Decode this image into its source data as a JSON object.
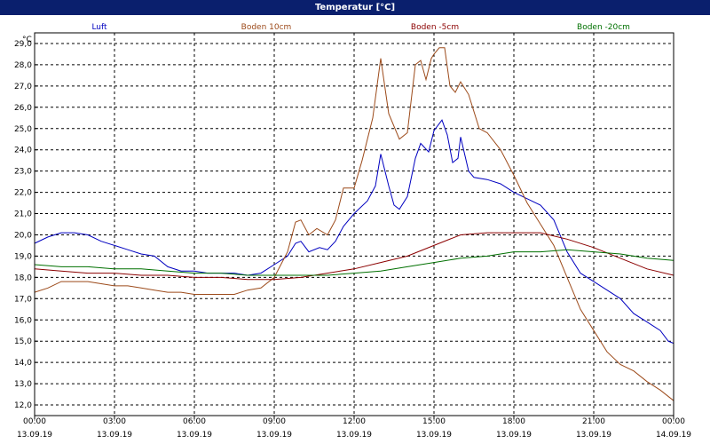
{
  "window": {
    "title": "Temperatur [°C]"
  },
  "chart_data": {
    "type": "line",
    "title": "Temperatur [°C]",
    "ylabel": "°C",
    "ylim": [
      11.5,
      29.5
    ],
    "yticks": [
      12.0,
      13.0,
      14.0,
      15.0,
      16.0,
      17.0,
      18.0,
      19.0,
      20.0,
      21.0,
      22.0,
      23.0,
      24.0,
      25.0,
      26.0,
      27.0,
      28.0,
      29.0
    ],
    "ytick_labels": [
      "12,0",
      "13,0",
      "14,0",
      "15,0",
      "16,0",
      "17,0",
      "18,0",
      "19,0",
      "20,0",
      "21,0",
      "22,0",
      "23,0",
      "24,0",
      "25,0",
      "26,0",
      "27,0",
      "28,0",
      "29,0"
    ],
    "xlim": [
      0,
      24
    ],
    "xticks": [
      {
        "h": 0,
        "time": "00:00",
        "date": "13.09.19"
      },
      {
        "h": 3,
        "time": "03:00",
        "date": "13.09.19"
      },
      {
        "h": 6,
        "time": "06:00",
        "date": "13.09.19"
      },
      {
        "h": 9,
        "time": "09:00",
        "date": "13.09.19"
      },
      {
        "h": 12,
        "time": "12:00",
        "date": "13.09.19"
      },
      {
        "h": 15,
        "time": "15:00",
        "date": "13.09.19"
      },
      {
        "h": 18,
        "time": "18:00",
        "date": "13.09.19"
      },
      {
        "h": 21,
        "time": "21:00",
        "date": "13.09.19"
      },
      {
        "h": 24,
        "time": "00:00",
        "date": "14.09.19"
      }
    ],
    "grid": true,
    "legend_position": "top",
    "series": [
      {
        "name": "Luft",
        "color": "#0000c0",
        "points": [
          [
            0,
            19.6
          ],
          [
            0.5,
            19.9
          ],
          [
            1,
            20.1
          ],
          [
            1.5,
            20.1
          ],
          [
            2,
            20.0
          ],
          [
            2.5,
            19.7
          ],
          [
            3,
            19.5
          ],
          [
            3.5,
            19.3
          ],
          [
            4,
            19.1
          ],
          [
            4.5,
            19.0
          ],
          [
            5,
            18.5
          ],
          [
            5.5,
            18.3
          ],
          [
            6,
            18.3
          ],
          [
            6.5,
            18.2
          ],
          [
            7,
            18.2
          ],
          [
            7.5,
            18.2
          ],
          [
            8,
            18.1
          ],
          [
            8.5,
            18.2
          ],
          [
            9,
            18.6
          ],
          [
            9.5,
            19.0
          ],
          [
            9.8,
            19.6
          ],
          [
            10,
            19.7
          ],
          [
            10.3,
            19.2
          ],
          [
            10.7,
            19.4
          ],
          [
            11,
            19.3
          ],
          [
            11.3,
            19.7
          ],
          [
            11.6,
            20.4
          ],
          [
            12,
            21.0
          ],
          [
            12.5,
            21.6
          ],
          [
            12.8,
            22.3
          ],
          [
            13,
            23.8
          ],
          [
            13.3,
            22.3
          ],
          [
            13.5,
            21.4
          ],
          [
            13.7,
            21.2
          ],
          [
            14,
            21.8
          ],
          [
            14.3,
            23.6
          ],
          [
            14.5,
            24.3
          ],
          [
            14.8,
            23.9
          ],
          [
            15,
            24.9
          ],
          [
            15.3,
            25.4
          ],
          [
            15.5,
            24.7
          ],
          [
            15.7,
            23.4
          ],
          [
            15.9,
            23.6
          ],
          [
            16,
            24.6
          ],
          [
            16.3,
            23.0
          ],
          [
            16.5,
            22.7
          ],
          [
            17,
            22.6
          ],
          [
            17.5,
            22.4
          ],
          [
            18,
            22.0
          ],
          [
            18.5,
            21.7
          ],
          [
            19,
            21.4
          ],
          [
            19.5,
            20.7
          ],
          [
            20,
            19.2
          ],
          [
            20.5,
            18.2
          ],
          [
            21,
            17.8
          ],
          [
            21.5,
            17.4
          ],
          [
            22,
            17.0
          ],
          [
            22.5,
            16.3
          ],
          [
            23,
            15.9
          ],
          [
            23.5,
            15.5
          ],
          [
            23.8,
            15.0
          ],
          [
            24,
            14.9
          ]
        ]
      },
      {
        "name": "Boden 10cm",
        "color": "#9c4a1a",
        "points": [
          [
            0,
            17.3
          ],
          [
            0.5,
            17.5
          ],
          [
            1,
            17.8
          ],
          [
            1.5,
            17.8
          ],
          [
            2,
            17.8
          ],
          [
            2.5,
            17.7
          ],
          [
            3,
            17.6
          ],
          [
            3.5,
            17.6
          ],
          [
            4,
            17.5
          ],
          [
            4.5,
            17.4
          ],
          [
            5,
            17.3
          ],
          [
            5.5,
            17.3
          ],
          [
            6,
            17.2
          ],
          [
            6.5,
            17.2
          ],
          [
            7,
            17.2
          ],
          [
            7.5,
            17.2
          ],
          [
            8,
            17.4
          ],
          [
            8.5,
            17.5
          ],
          [
            9,
            18.0
          ],
          [
            9.5,
            19.2
          ],
          [
            9.8,
            20.6
          ],
          [
            10,
            20.7
          ],
          [
            10.3,
            20.0
          ],
          [
            10.6,
            20.3
          ],
          [
            11,
            20.0
          ],
          [
            11.3,
            20.7
          ],
          [
            11.6,
            22.2
          ],
          [
            12,
            22.2
          ],
          [
            12.3,
            23.5
          ],
          [
            12.7,
            25.5
          ],
          [
            13,
            28.3
          ],
          [
            13.3,
            25.7
          ],
          [
            13.7,
            24.5
          ],
          [
            14,
            24.8
          ],
          [
            14.3,
            28.0
          ],
          [
            14.5,
            28.2
          ],
          [
            14.7,
            27.3
          ],
          [
            14.9,
            28.3
          ],
          [
            15,
            28.5
          ],
          [
            15.2,
            28.8
          ],
          [
            15.4,
            28.8
          ],
          [
            15.6,
            27.0
          ],
          [
            15.8,
            26.7
          ],
          [
            16,
            27.2
          ],
          [
            16.3,
            26.6
          ],
          [
            16.7,
            25.0
          ],
          [
            17,
            24.8
          ],
          [
            17.5,
            24.0
          ],
          [
            18,
            22.8
          ],
          [
            18.5,
            21.5
          ],
          [
            19,
            20.5
          ],
          [
            19.5,
            19.5
          ],
          [
            20,
            18.0
          ],
          [
            20.5,
            16.5
          ],
          [
            21,
            15.5
          ],
          [
            21.5,
            14.5
          ],
          [
            22,
            13.9
          ],
          [
            22.5,
            13.6
          ],
          [
            23,
            13.1
          ],
          [
            23.5,
            12.7
          ],
          [
            24,
            12.2
          ]
        ]
      },
      {
        "name": "Boden -5cm",
        "color": "#8b0000",
        "points": [
          [
            0,
            18.4
          ],
          [
            1,
            18.3
          ],
          [
            2,
            18.2
          ],
          [
            3,
            18.2
          ],
          [
            4,
            18.1
          ],
          [
            5,
            18.1
          ],
          [
            6,
            18.0
          ],
          [
            7,
            18.0
          ],
          [
            8,
            17.9
          ],
          [
            9,
            17.9
          ],
          [
            10,
            18.0
          ],
          [
            11,
            18.2
          ],
          [
            12,
            18.4
          ],
          [
            13,
            18.7
          ],
          [
            14,
            19.0
          ],
          [
            15,
            19.5
          ],
          [
            16,
            20.0
          ],
          [
            17,
            20.1
          ],
          [
            18,
            20.1
          ],
          [
            19,
            20.1
          ],
          [
            20,
            19.8
          ],
          [
            21,
            19.4
          ],
          [
            22,
            18.9
          ],
          [
            23,
            18.4
          ],
          [
            24,
            18.1
          ]
        ]
      },
      {
        "name": "Boden -20cm",
        "color": "#007000",
        "points": [
          [
            0,
            18.6
          ],
          [
            1,
            18.5
          ],
          [
            2,
            18.5
          ],
          [
            3,
            18.4
          ],
          [
            4,
            18.4
          ],
          [
            5,
            18.3
          ],
          [
            6,
            18.2
          ],
          [
            7,
            18.2
          ],
          [
            8,
            18.1
          ],
          [
            9,
            18.1
          ],
          [
            10,
            18.1
          ],
          [
            11,
            18.1
          ],
          [
            12,
            18.2
          ],
          [
            13,
            18.3
          ],
          [
            14,
            18.5
          ],
          [
            15,
            18.7
          ],
          [
            16,
            18.9
          ],
          [
            17,
            19.0
          ],
          [
            18,
            19.2
          ],
          [
            19,
            19.2
          ],
          [
            20,
            19.3
          ],
          [
            21,
            19.2
          ],
          [
            22,
            19.1
          ],
          [
            23,
            18.9
          ],
          [
            24,
            18.8
          ]
        ]
      }
    ]
  }
}
